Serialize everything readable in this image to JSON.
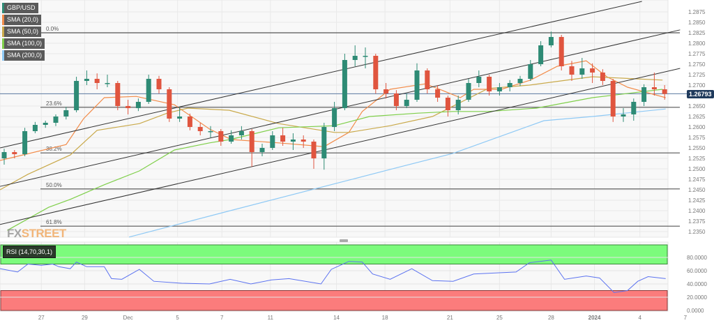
{
  "legend": {
    "symbol": "GBP/USD",
    "items": [
      {
        "label": "SMA (20,0)",
        "color": "#f28c4a"
      },
      {
        "label": "SMA (50,0)",
        "color": "#c9a94a"
      },
      {
        "label": "SMA (100,0)",
        "color": "#7fcf4a"
      },
      {
        "label": "SMA (200,0)",
        "color": "#8ec9f5"
      }
    ],
    "symbol_color": "#2e8b75"
  },
  "rsi_label": "RSI (14,70,30,1)",
  "current_price": "1.26793",
  "watermark": {
    "a": "FX",
    "b": "STREET"
  },
  "colors": {
    "up": "#2e8b75",
    "down": "#e0553f",
    "current_line": "#5a78a0",
    "overbought": "#7cfb7c",
    "oversold": "#fb7c7c",
    "rsi_line": "#5b72f0"
  },
  "chart_data": {
    "type": "candlestick",
    "title": "",
    "ylim": [
      1.2335,
      1.29
    ],
    "price_ticks": [
      "1.2875",
      "1.2850",
      "1.2825",
      "1.2800",
      "1.2775",
      "1.2750",
      "1.2725",
      "1.2700",
      "1.2650",
      "1.2625",
      "1.2600",
      "1.2575",
      "1.2550",
      "1.2525",
      "1.2500",
      "1.2475",
      "1.2450",
      "1.2425",
      "1.2400",
      "1.2375",
      "1.2350"
    ],
    "x_ticks": [
      {
        "label": "27",
        "bar": 3.6
      },
      {
        "label": "29",
        "bar": 7.8
      },
      {
        "label": "Dec",
        "bar": 12
      },
      {
        "label": "5",
        "bar": 16.8
      },
      {
        "label": "7",
        "bar": 21.1
      },
      {
        "label": "11",
        "bar": 25.8
      },
      {
        "label": "14",
        "bar": 32.2
      },
      {
        "label": "18",
        "bar": 36.9
      },
      {
        "label": "21",
        "bar": 43.2
      },
      {
        "label": "25",
        "bar": 48
      },
      {
        "label": "28",
        "bar": 53
      },
      {
        "label": "2024",
        "bar": 57.2
      },
      {
        "label": "4",
        "bar": 61.6
      },
      {
        "label": "7",
        "bar": 66
      }
    ],
    "ohlc": [
      [
        1.2525,
        1.2548,
        1.251,
        1.254
      ],
      [
        1.254,
        1.2545,
        1.2525,
        1.2535
      ],
      [
        1.2535,
        1.2598,
        1.253,
        1.259
      ],
      [
        1.259,
        1.2612,
        1.2585,
        1.2605
      ],
      [
        1.2605,
        1.2615,
        1.2598,
        1.261
      ],
      [
        1.261,
        1.263,
        1.2602,
        1.2625
      ],
      [
        1.2625,
        1.2648,
        1.2618,
        1.264
      ],
      [
        1.264,
        1.272,
        1.2635,
        1.271
      ],
      [
        1.271,
        1.2735,
        1.27,
        1.2715
      ],
      [
        1.2715,
        1.2728,
        1.269,
        1.2705
      ],
      [
        1.2705,
        1.2725,
        1.2695,
        1.2705
      ],
      [
        1.2705,
        1.271,
        1.264,
        1.265
      ],
      [
        1.265,
        1.2665,
        1.263,
        1.2645
      ],
      [
        1.2645,
        1.2668,
        1.2638,
        1.266
      ],
      [
        1.266,
        1.2725,
        1.2655,
        1.2715
      ],
      [
        1.2715,
        1.2722,
        1.268,
        1.269
      ],
      [
        1.269,
        1.2695,
        1.2612,
        1.262
      ],
      [
        1.262,
        1.2648,
        1.2612,
        1.2625
      ],
      [
        1.2625,
        1.2632,
        1.2592,
        1.26
      ],
      [
        1.26,
        1.261,
        1.258,
        1.259
      ],
      [
        1.259,
        1.2602,
        1.2575,
        1.259
      ],
      [
        1.259,
        1.2595,
        1.2555,
        1.2565
      ],
      [
        1.2565,
        1.2592,
        1.256,
        1.258
      ],
      [
        1.258,
        1.2602,
        1.257,
        1.259
      ],
      [
        1.259,
        1.2595,
        1.2505,
        1.254
      ],
      [
        1.254,
        1.256,
        1.253,
        1.255
      ],
      [
        1.255,
        1.259,
        1.2545,
        1.258
      ],
      [
        1.258,
        1.2598,
        1.2555,
        1.2565
      ],
      [
        1.2565,
        1.2585,
        1.2545,
        1.257
      ],
      [
        1.257,
        1.258,
        1.255,
        1.2565
      ],
      [
        1.2565,
        1.257,
        1.25,
        1.2525
      ],
      [
        1.2525,
        1.261,
        1.2498,
        1.26
      ],
      [
        1.26,
        1.266,
        1.259,
        1.2645
      ],
      [
        1.2645,
        1.2775,
        1.264,
        1.276
      ],
      [
        1.276,
        1.2795,
        1.2745,
        1.277
      ],
      [
        1.277,
        1.279,
        1.274,
        1.277
      ],
      [
        1.277,
        1.2775,
        1.268,
        1.269
      ],
      [
        1.269,
        1.2705,
        1.2668,
        1.268
      ],
      [
        1.268,
        1.2688,
        1.264,
        1.265
      ],
      [
        1.265,
        1.268,
        1.2645,
        1.2665
      ],
      [
        1.2665,
        1.2752,
        1.266,
        1.2735
      ],
      [
        1.2735,
        1.274,
        1.268,
        1.269
      ],
      [
        1.269,
        1.27,
        1.266,
        1.267
      ],
      [
        1.267,
        1.2675,
        1.2625,
        1.264
      ],
      [
        1.264,
        1.2675,
        1.263,
        1.2665
      ],
      [
        1.2665,
        1.2715,
        1.266,
        1.2705
      ],
      [
        1.2705,
        1.2735,
        1.2695,
        1.272
      ],
      [
        1.272,
        1.2725,
        1.2675,
        1.2685
      ],
      [
        1.2685,
        1.2705,
        1.2675,
        1.2695
      ],
      [
        1.2695,
        1.2712,
        1.2685,
        1.2705
      ],
      [
        1.2705,
        1.2722,
        1.2698,
        1.2715
      ],
      [
        1.2715,
        1.276,
        1.271,
        1.275
      ],
      [
        1.275,
        1.2805,
        1.2745,
        1.2795
      ],
      [
        1.2795,
        1.2828,
        1.279,
        1.2815
      ],
      [
        1.2815,
        1.282,
        1.2735,
        1.2745
      ],
      [
        1.2745,
        1.2758,
        1.271,
        1.2725
      ],
      [
        1.2725,
        1.2765,
        1.2715,
        1.274
      ],
      [
        1.274,
        1.2752,
        1.2705,
        1.273
      ],
      [
        1.273,
        1.2738,
        1.27,
        1.271
      ],
      [
        1.271,
        1.2715,
        1.2612,
        1.2625
      ],
      [
        1.2625,
        1.2645,
        1.2612,
        1.263
      ],
      [
        1.263,
        1.2668,
        1.2615,
        1.266
      ],
      [
        1.266,
        1.2702,
        1.265,
        1.2695
      ],
      [
        1.2695,
        1.273,
        1.2675,
        1.269
      ],
      [
        1.269,
        1.27,
        1.2665,
        1.2679
      ]
    ],
    "sma": [
      {
        "name": "SMA (20,0)",
        "color": "#f28c4a",
        "points": [
          [
            -0.4,
            1.252
          ],
          [
            6,
            1.2558
          ],
          [
            7.7,
            1.262
          ],
          [
            9.7,
            1.267
          ],
          [
            12.8,
            1.2673
          ],
          [
            16.5,
            1.2653
          ],
          [
            19.9,
            1.2595
          ],
          [
            22,
            1.257
          ],
          [
            26.6,
            1.2562
          ],
          [
            31,
            1.2553
          ],
          [
            33.4,
            1.2587
          ],
          [
            34.7,
            1.2637
          ],
          [
            37.4,
            1.269
          ],
          [
            40.8,
            1.2703
          ],
          [
            42.2,
            1.269
          ],
          [
            44.2,
            1.267
          ],
          [
            45.5,
            1.269
          ],
          [
            48.2,
            1.269
          ],
          [
            51,
            1.2712
          ],
          [
            53.6,
            1.2745
          ],
          [
            56.4,
            1.2758
          ],
          [
            58.4,
            1.272
          ],
          [
            60.4,
            1.2695
          ],
          [
            64.1,
            1.267
          ]
        ]
      },
      {
        "name": "SMA (50,0)",
        "color": "#c9a94a",
        "points": [
          [
            -0.4,
            1.245
          ],
          [
            2.3,
            1.2487
          ],
          [
            6.4,
            1.2533
          ],
          [
            9,
            1.2592
          ],
          [
            13.1,
            1.2608
          ],
          [
            15.8,
            1.2633
          ],
          [
            17.8,
            1.2645
          ],
          [
            21.8,
            1.264
          ],
          [
            26.6,
            1.2608
          ],
          [
            32,
            1.2587
          ],
          [
            33.4,
            1.2587
          ],
          [
            37.4,
            1.2603
          ],
          [
            41.5,
            1.2625
          ],
          [
            46.9,
            1.2692
          ],
          [
            50.9,
            1.27
          ],
          [
            57,
            1.272
          ],
          [
            63.8,
            1.2712
          ]
        ]
      },
      {
        "name": "SMA (100,0)",
        "color": "#7fcf4a",
        "points": [
          [
            0.3,
            1.2353
          ],
          [
            4.3,
            1.2408
          ],
          [
            6.4,
            1.2427
          ],
          [
            9.7,
            1.2462
          ],
          [
            13.1,
            1.2495
          ],
          [
            16.5,
            1.2545
          ],
          [
            19.9,
            1.2562
          ],
          [
            21.9,
            1.257
          ],
          [
            26.6,
            1.2598
          ],
          [
            32,
            1.2603
          ],
          [
            35.4,
            1.2625
          ],
          [
            40.1,
            1.2633
          ],
          [
            43.5,
            1.2637
          ],
          [
            46.9,
            1.2637
          ],
          [
            51.6,
            1.2645
          ],
          [
            57,
            1.267
          ],
          [
            63.8,
            1.269
          ]
        ]
      },
      {
        "name": "SMA (200,0)",
        "color": "#8ec9f5",
        "points": [
          [
            12.1,
            1.2337
          ],
          [
            21.9,
            1.24
          ],
          [
            33.4,
            1.2473
          ],
          [
            38.1,
            1.2503
          ],
          [
            43.5,
            1.2537
          ],
          [
            52.3,
            1.2615
          ],
          [
            57,
            1.2625
          ],
          [
            64.1,
            1.2643
          ]
        ]
      }
    ],
    "trendlines": [
      {
        "from": [
          -0.4,
          1.255
        ],
        "to": [
          61.8,
          1.29
        ]
      },
      {
        "from": [
          -0.4,
          1.2458
        ],
        "to": [
          65.5,
          1.2832
        ]
      },
      {
        "from": [
          -0.4,
          1.2367
        ],
        "to": [
          65.5,
          1.274
        ]
      }
    ],
    "fibonacci": [
      {
        "label": "0.0%",
        "price": 1.2825
      },
      {
        "label": "23.6%",
        "price": 1.2647
      },
      {
        "label": "38.2%",
        "price": 1.2538
      },
      {
        "label": "50.0%",
        "price": 1.2452
      },
      {
        "label": "61.8%",
        "price": 1.2363
      }
    ],
    "current_price": 1.26793,
    "rsi": {
      "period": 14,
      "overbought": 70,
      "oversold": 30,
      "ylim": [
        0,
        100
      ],
      "ticks": [
        "80.0000",
        "60.0000",
        "40.0000",
        "20.0000",
        "0.0000"
      ],
      "points": [
        [
          -0.4,
          63
        ],
        [
          1.3,
          58
        ],
        [
          2.3,
          70
        ],
        [
          3.6,
          68
        ],
        [
          4.7,
          70
        ],
        [
          5.3,
          66
        ],
        [
          6.4,
          63
        ],
        [
          7,
          73
        ],
        [
          8,
          66
        ],
        [
          9.7,
          66
        ],
        [
          10.4,
          48
        ],
        [
          11.4,
          47
        ],
        [
          13.1,
          62
        ],
        [
          14.5,
          44
        ],
        [
          17.2,
          41
        ],
        [
          19.9,
          40
        ],
        [
          21.9,
          47
        ],
        [
          23.9,
          40
        ],
        [
          25.9,
          46
        ],
        [
          27.6,
          48
        ],
        [
          30.7,
          40
        ],
        [
          31.7,
          62
        ],
        [
          33.4,
          74
        ],
        [
          34.7,
          73
        ],
        [
          35.7,
          55
        ],
        [
          37.4,
          47
        ],
        [
          39.5,
          63
        ],
        [
          41.5,
          45
        ],
        [
          43.5,
          44
        ],
        [
          45.5,
          55
        ],
        [
          46.9,
          56
        ],
        [
          49.6,
          58
        ],
        [
          50.9,
          72
        ],
        [
          53,
          76
        ],
        [
          54.3,
          47
        ],
        [
          56.4,
          52
        ],
        [
          57.7,
          49
        ],
        [
          59.1,
          27
        ],
        [
          60.4,
          30
        ],
        [
          61.4,
          44
        ],
        [
          62.4,
          51
        ],
        [
          64.1,
          48
        ]
      ]
    }
  }
}
